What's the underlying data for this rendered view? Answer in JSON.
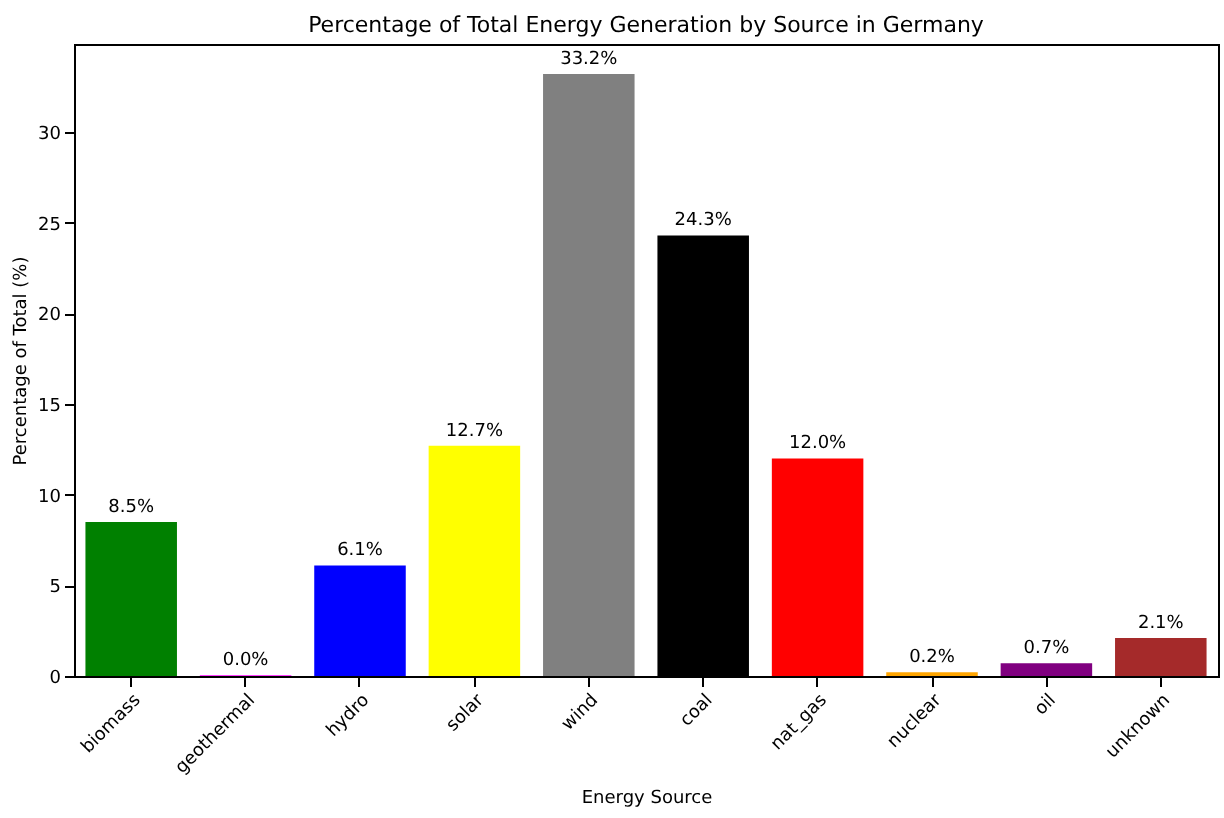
{
  "chart_data": {
    "type": "bar",
    "title": "Percentage of Total Energy Generation by Source in Germany",
    "xlabel": "Energy Source",
    "ylabel": "Percentage of Total (%)",
    "categories": [
      "biomass",
      "geothermal",
      "hydro",
      "solar",
      "wind",
      "coal",
      "nat_gas",
      "nuclear",
      "oil",
      "unknown"
    ],
    "values": [
      8.5,
      0.04,
      6.1,
      12.7,
      33.2,
      24.3,
      12.0,
      0.2,
      0.7,
      2.1
    ],
    "colors": [
      "#008000",
      "#ff00ff",
      "#0000ff",
      "#ffff00",
      "#808080",
      "#000000",
      "#ff0000",
      "#ffa500",
      "#800080",
      "#a52a2a"
    ],
    "value_labels": [
      "8.5%",
      "0.0%",
      "6.1%",
      "12.7%",
      "33.2%",
      "24.3%",
      "12.0%",
      "0.2%",
      "0.7%",
      "2.1%"
    ],
    "ylim": [
      0,
      34.86
    ],
    "yticks": [
      0,
      5,
      10,
      15,
      20,
      25,
      30
    ],
    "grid": false
  }
}
